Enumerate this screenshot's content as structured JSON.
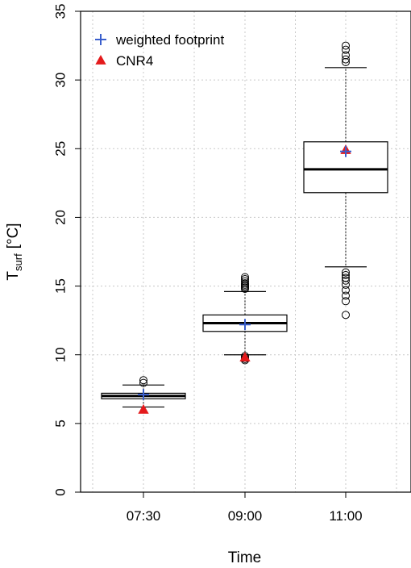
{
  "chart_data": {
    "type": "box",
    "xlabel": "Time",
    "ylabel_main": "T",
    "ylabel_sub": "surf",
    "ylabel_unit": "[°C]",
    "ylim": [
      0,
      35
    ],
    "yticks": [
      0,
      5,
      10,
      15,
      20,
      25,
      30,
      35
    ],
    "grid": true,
    "legend_position": "top-left",
    "categories": [
      "07:30",
      "09:00",
      "11:00"
    ],
    "boxes": [
      {
        "category": "07:30",
        "whisker_low": 6.2,
        "q1": 6.8,
        "median": 7.0,
        "q3": 7.2,
        "whisker_high": 7.8,
        "outliers": [
          7.95,
          8.15
        ]
      },
      {
        "category": "09:00",
        "whisker_low": 10.0,
        "q1": 11.7,
        "median": 12.3,
        "q3": 12.9,
        "whisker_high": 14.6,
        "outliers": [
          9.6,
          9.7,
          9.8,
          9.9,
          14.8,
          14.9,
          15.0,
          15.1,
          15.2,
          15.35,
          15.5,
          15.65
        ]
      },
      {
        "category": "11:00",
        "whisker_low": 16.4,
        "q1": 21.8,
        "median": 23.5,
        "q3": 25.5,
        "whisker_high": 30.9,
        "outliers": [
          12.9,
          13.9,
          14.3,
          14.7,
          15.1,
          15.4,
          15.6,
          15.8,
          16.0,
          31.3,
          31.5,
          31.8,
          32.2,
          32.5
        ]
      }
    ],
    "series": [
      {
        "name": "weighted footprint",
        "marker": "plus",
        "color": "#3a5fcd",
        "values": [
          7.1,
          12.2,
          24.8
        ]
      },
      {
        "name": "CNR4",
        "marker": "triangle",
        "color": "#e41a1c",
        "values": [
          6.0,
          9.8,
          24.9
        ]
      }
    ]
  }
}
